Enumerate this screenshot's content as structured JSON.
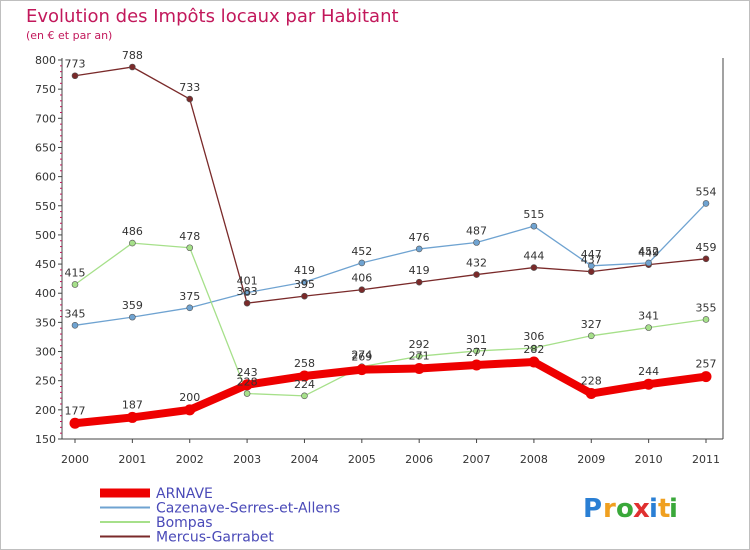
{
  "chart_data": {
    "type": "line",
    "title": "Evolution des Impôts locaux par Habitant",
    "subtitle": "(en € et par an)",
    "x": [
      2000,
      2001,
      2002,
      2003,
      2004,
      2005,
      2006,
      2007,
      2008,
      2009,
      2010,
      2011
    ],
    "ylim": [
      150,
      800
    ],
    "ytick_step": 50,
    "grid": false,
    "legend_position": "bottom-left",
    "series": [
      {
        "name": "ARNAVE",
        "color": "#ee0000",
        "values": [
          177,
          187,
          200,
          243,
          258,
          269,
          271,
          277,
          282,
          228,
          244,
          257
        ]
      },
      {
        "name": "Cazenave-Serres-et-Allens",
        "color": "#6fa3d1",
        "values": [
          345,
          359,
          375,
          401,
          419,
          452,
          476,
          487,
          515,
          447,
          452,
          554
        ]
      },
      {
        "name": "Bompas",
        "color": "#a6e08a",
        "values": [
          415,
          486,
          478,
          228,
          224,
          274,
          292,
          301,
          306,
          327,
          341,
          355
        ]
      },
      {
        "name": "Mercus-Garrabet",
        "color": "#7a2a2a",
        "values": [
          773,
          788,
          733,
          383,
          395,
          406,
          419,
          432,
          444,
          437,
          449,
          459
        ]
      }
    ]
  },
  "logo": {
    "letters": [
      "P",
      "r",
      "o",
      "x",
      "i",
      "t",
      "i"
    ],
    "colors": [
      "#2a7fd4",
      "#f0a020",
      "#3aa83a",
      "#e03030",
      "#2a7fd4",
      "#f0a020",
      "#3aa83a"
    ]
  }
}
